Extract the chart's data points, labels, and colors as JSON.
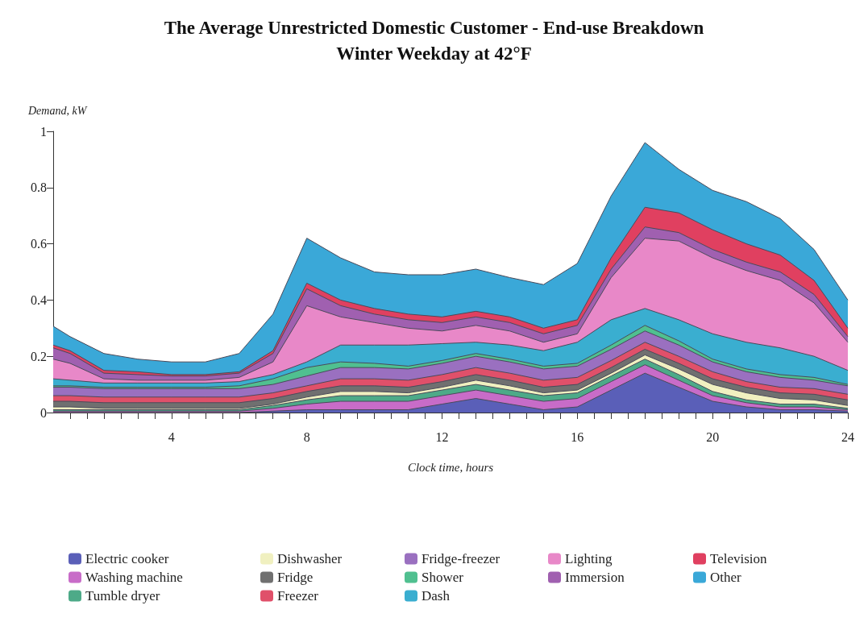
{
  "chart_data": {
    "type": "area",
    "title": "The Average Unrestricted Domestic Customer - End-use Breakdown",
    "subtitle": "Winter Weekday at 42°F",
    "xlabel": "Clock time, hours",
    "ylabel": "Demand, kW",
    "stacked": true,
    "grid": false,
    "legend": "bottom",
    "x": [
      0.5,
      1,
      2,
      3,
      4,
      5,
      6,
      7,
      8,
      9,
      10,
      11,
      12,
      13,
      14,
      15,
      16,
      17,
      18,
      19,
      20,
      21,
      22,
      23,
      24
    ],
    "xlim": [
      0.5,
      24
    ],
    "xticks": [
      {
        "value": 1,
        "label": null
      },
      {
        "value": 1.5,
        "label": null
      },
      {
        "value": 2,
        "label": null
      },
      {
        "value": 2.5,
        "label": null
      },
      {
        "value": 3,
        "label": null
      },
      {
        "value": 3.5,
        "label": null
      },
      4,
      {
        "value": 4.5,
        "label": null
      },
      {
        "value": 5,
        "label": null
      },
      {
        "value": 5.5,
        "label": null
      },
      {
        "value": 6,
        "label": null
      },
      {
        "value": 6.5,
        "label": null
      },
      {
        "value": 7,
        "label": null
      },
      {
        "value": 7.5,
        "label": null
      },
      8,
      {
        "value": 8.5,
        "label": null
      },
      {
        "value": 9,
        "label": null
      },
      {
        "value": 9.5,
        "label": null
      },
      {
        "value": 10,
        "label": null
      },
      {
        "value": 10.5,
        "label": null
      },
      {
        "value": 11,
        "label": null
      },
      {
        "value": 11.5,
        "label": null
      },
      12,
      {
        "value": 12.5,
        "label": null
      },
      {
        "value": 13,
        "label": null
      },
      {
        "value": 13.5,
        "label": null
      },
      {
        "value": 14,
        "label": null
      },
      {
        "value": 14.5,
        "label": null
      },
      {
        "value": 15,
        "label": null
      },
      {
        "value": 15.5,
        "label": null
      },
      16,
      {
        "value": 16.5,
        "label": null
      },
      {
        "value": 17,
        "label": null
      },
      {
        "value": 17.5,
        "label": null
      },
      {
        "value": 18,
        "label": null
      },
      {
        "value": 18.5,
        "label": null
      },
      {
        "value": 19,
        "label": null
      },
      {
        "value": 19.5,
        "label": null
      },
      20,
      {
        "value": 20.5,
        "label": null
      },
      {
        "value": 21,
        "label": null
      },
      {
        "value": 21.5,
        "label": null
      },
      {
        "value": 22,
        "label": null
      },
      {
        "value": 22.5,
        "label": null
      },
      {
        "value": 23,
        "label": null
      },
      {
        "value": 23.5,
        "label": null
      },
      24
    ],
    "ylim": [
      0,
      1
    ],
    "yticks": [
      0,
      0.2,
      0.4,
      0.6,
      0.8,
      1
    ],
    "series": [
      {
        "name": "Electric cooker",
        "color": "#5a5fb8",
        "values": [
          0,
          0,
          0,
          0,
          0,
          0,
          0,
          0.005,
          0.01,
          0.01,
          0.01,
          0.01,
          0.03,
          0.05,
          0.03,
          0.01,
          0.02,
          0.08,
          0.14,
          0.09,
          0.04,
          0.02,
          0.01,
          0.01,
          0.005
        ]
      },
      {
        "name": "Washing machine",
        "color": "#c86cc8",
        "values": [
          0.005,
          0.005,
          0.005,
          0.005,
          0.005,
          0.005,
          0.005,
          0.01,
          0.02,
          0.03,
          0.03,
          0.03,
          0.03,
          0.03,
          0.03,
          0.03,
          0.03,
          0.03,
          0.03,
          0.025,
          0.02,
          0.015,
          0.01,
          0.01,
          0.005
        ]
      },
      {
        "name": "Tumble dryer",
        "color": "#4daa88",
        "values": [
          0.005,
          0.005,
          0.005,
          0.005,
          0.005,
          0.005,
          0.005,
          0.01,
          0.015,
          0.02,
          0.02,
          0.02,
          0.02,
          0.02,
          0.02,
          0.02,
          0.02,
          0.02,
          0.02,
          0.02,
          0.015,
          0.01,
          0.01,
          0.01,
          0.005
        ]
      },
      {
        "name": "Dishwasher",
        "color": "#f0f0c0",
        "values": [
          0.01,
          0.01,
          0.005,
          0.005,
          0.005,
          0.005,
          0.005,
          0.005,
          0.01,
          0.015,
          0.015,
          0.01,
          0.01,
          0.015,
          0.015,
          0.01,
          0.01,
          0.01,
          0.015,
          0.02,
          0.025,
          0.025,
          0.02,
          0.015,
          0.01
        ]
      },
      {
        "name": "Fridge",
        "color": "#707070",
        "values": [
          0.02,
          0.02,
          0.02,
          0.02,
          0.02,
          0.02,
          0.02,
          0.02,
          0.02,
          0.02,
          0.02,
          0.02,
          0.02,
          0.02,
          0.02,
          0.02,
          0.02,
          0.02,
          0.02,
          0.02,
          0.02,
          0.02,
          0.02,
          0.02,
          0.02
        ]
      },
      {
        "name": "Freezer",
        "color": "#e0506a",
        "values": [
          0.02,
          0.02,
          0.02,
          0.02,
          0.02,
          0.02,
          0.02,
          0.02,
          0.02,
          0.025,
          0.025,
          0.025,
          0.025,
          0.025,
          0.025,
          0.025,
          0.025,
          0.025,
          0.025,
          0.025,
          0.025,
          0.02,
          0.02,
          0.02,
          0.02
        ]
      },
      {
        "name": "Fridge-freezer",
        "color": "#9a70c0",
        "values": [
          0.03,
          0.03,
          0.03,
          0.03,
          0.03,
          0.03,
          0.03,
          0.03,
          0.035,
          0.04,
          0.04,
          0.04,
          0.04,
          0.04,
          0.04,
          0.04,
          0.04,
          0.04,
          0.04,
          0.04,
          0.035,
          0.035,
          0.035,
          0.03,
          0.03
        ]
      },
      {
        "name": "Shower",
        "color": "#50c090",
        "values": [
          0.005,
          0.005,
          0.005,
          0.005,
          0.005,
          0.005,
          0.01,
          0.02,
          0.03,
          0.02,
          0.015,
          0.01,
          0.01,
          0.01,
          0.01,
          0.01,
          0.01,
          0.015,
          0.02,
          0.015,
          0.01,
          0.01,
          0.01,
          0.01,
          0.005
        ]
      },
      {
        "name": "Dash",
        "color": "#3aaed0",
        "values": [
          0.025,
          0.02,
          0.015,
          0.015,
          0.015,
          0.015,
          0.015,
          0.015,
          0.02,
          0.06,
          0.065,
          0.075,
          0.06,
          0.04,
          0.05,
          0.055,
          0.075,
          0.09,
          0.06,
          0.075,
          0.09,
          0.095,
          0.095,
          0.075,
          0.05
        ]
      },
      {
        "name": "Lighting",
        "color": "#e888c8",
        "values": [
          0.07,
          0.06,
          0.015,
          0.01,
          0.01,
          0.01,
          0.015,
          0.045,
          0.2,
          0.1,
          0.08,
          0.06,
          0.045,
          0.06,
          0.05,
          0.03,
          0.03,
          0.15,
          0.25,
          0.28,
          0.27,
          0.255,
          0.24,
          0.19,
          0.1
        ]
      },
      {
        "name": "Immersion",
        "color": "#a060b0",
        "values": [
          0.04,
          0.035,
          0.02,
          0.02,
          0.015,
          0.015,
          0.015,
          0.03,
          0.06,
          0.04,
          0.03,
          0.03,
          0.03,
          0.03,
          0.03,
          0.03,
          0.03,
          0.03,
          0.04,
          0.03,
          0.03,
          0.03,
          0.03,
          0.03,
          0.02
        ]
      },
      {
        "name": "Television",
        "color": "#e04060",
        "values": [
          0.01,
          0.01,
          0.01,
          0.01,
          0.005,
          0.005,
          0.005,
          0.01,
          0.02,
          0.02,
          0.02,
          0.02,
          0.02,
          0.02,
          0.02,
          0.02,
          0.02,
          0.04,
          0.07,
          0.07,
          0.07,
          0.065,
          0.06,
          0.05,
          0.03
        ]
      },
      {
        "name": "Other",
        "color": "#3aa8d8",
        "values": [
          0.067,
          0.05,
          0.06,
          0.045,
          0.045,
          0.045,
          0.065,
          0.13,
          0.16,
          0.15,
          0.13,
          0.14,
          0.15,
          0.15,
          0.14,
          0.155,
          0.2,
          0.22,
          0.23,
          0.155,
          0.14,
          0.15,
          0.13,
          0.11,
          0.1
        ]
      }
    ]
  }
}
